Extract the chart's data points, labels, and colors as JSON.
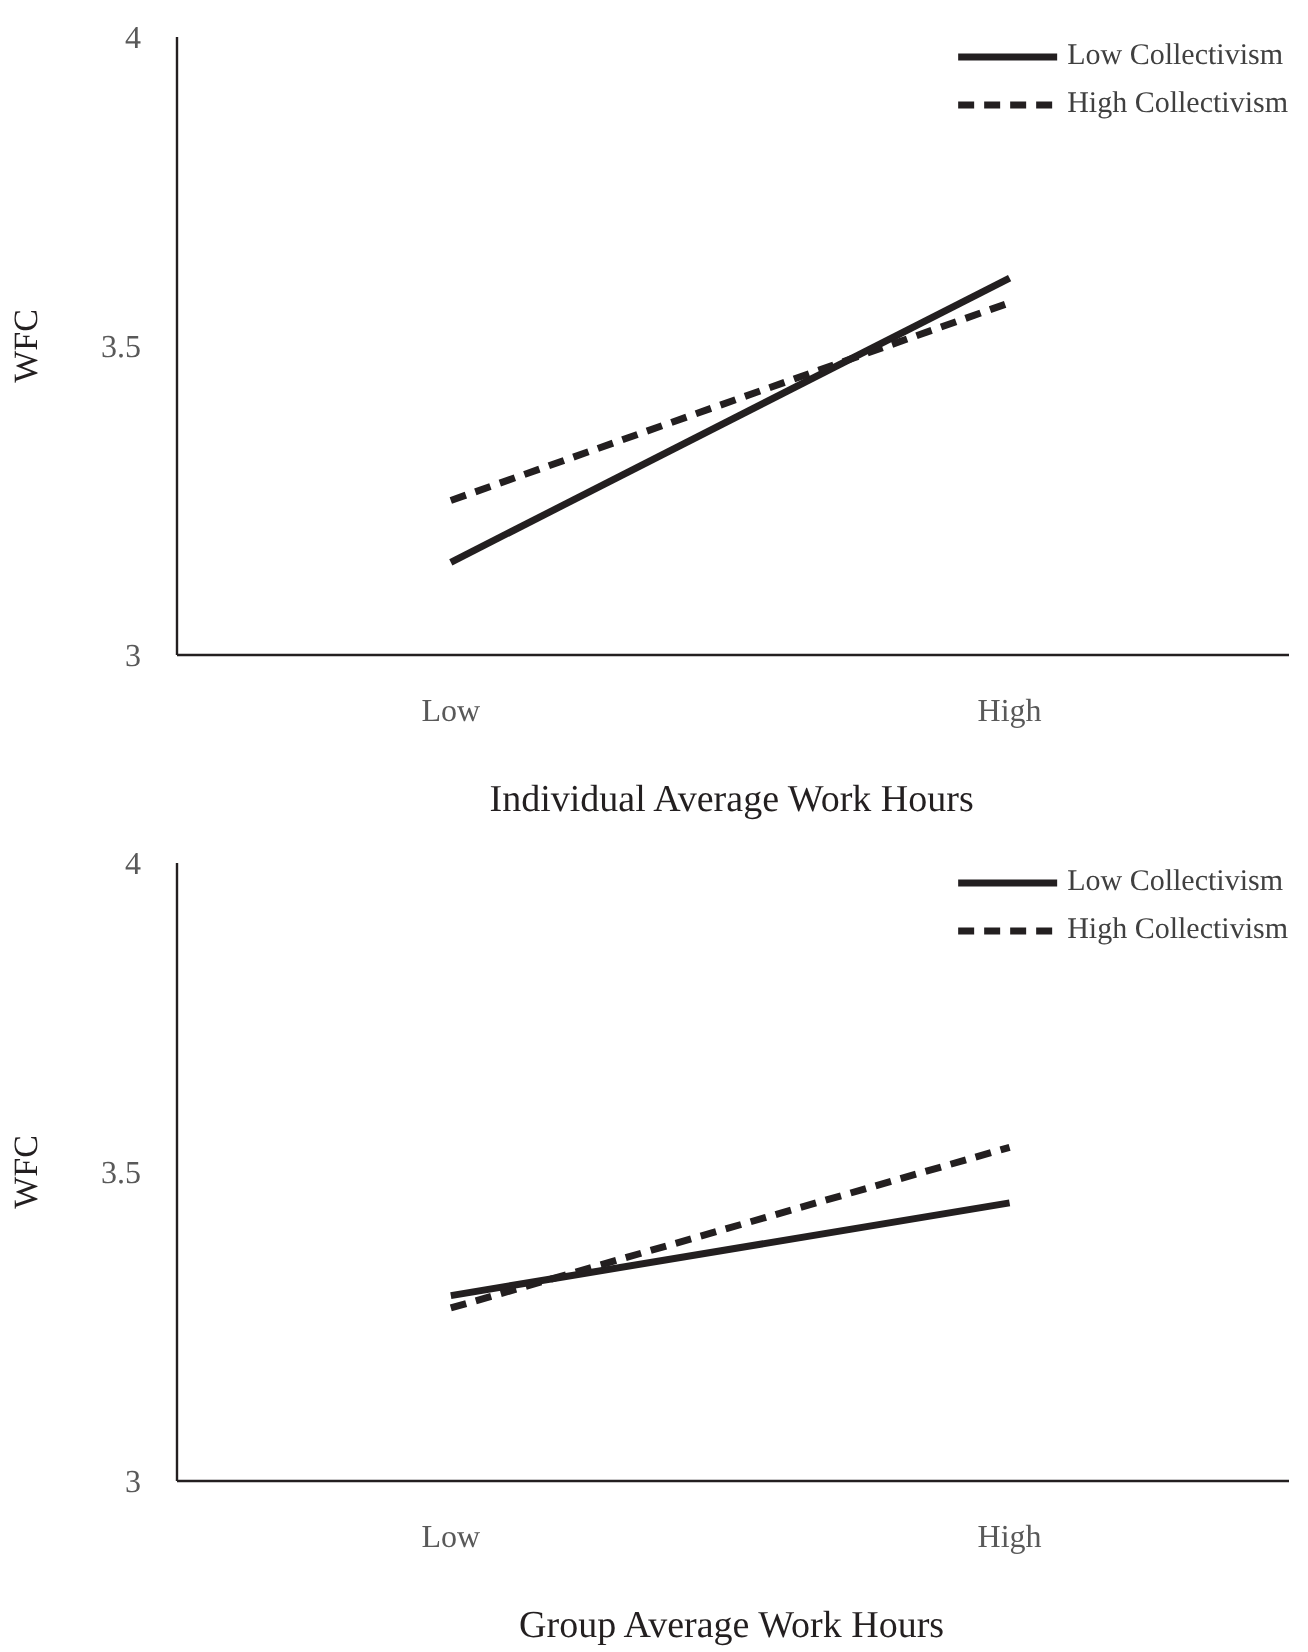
{
  "chart_data": [
    {
      "type": "line",
      "xlabel": "Individual Average Work Hours",
      "ylabel": "WFC",
      "categories": [
        "Low",
        "High"
      ],
      "ylim": [
        3,
        4
      ],
      "yticks": [
        3,
        3.5,
        4
      ],
      "grid": false,
      "legend": "top right",
      "marker": "none",
      "series": [
        {
          "name": "Low Collectivism",
          "color": "#231f20",
          "line_style": "solid",
          "values": [
            3.15,
            3.61
          ]
        },
        {
          "name": "High Collectivism",
          "color": "#231f20",
          "line_style": "dashed",
          "values": [
            3.25,
            3.57
          ]
        }
      ]
    },
    {
      "type": "line",
      "xlabel": "Group Average Work Hours",
      "ylabel": "WFC",
      "categories": [
        "Low",
        "High"
      ],
      "ylim": [
        3,
        4
      ],
      "yticks": [
        3,
        3.5,
        4
      ],
      "grid": false,
      "legend": "top right",
      "marker": "none",
      "series": [
        {
          "name": "Low Collectivism",
          "color": "#231f20",
          "line_style": "solid",
          "values": [
            3.3,
            3.45
          ]
        },
        {
          "name": "High Collectivism",
          "color": "#231f20",
          "line_style": "dashed",
          "values": [
            3.28,
            3.54
          ]
        }
      ]
    }
  ]
}
